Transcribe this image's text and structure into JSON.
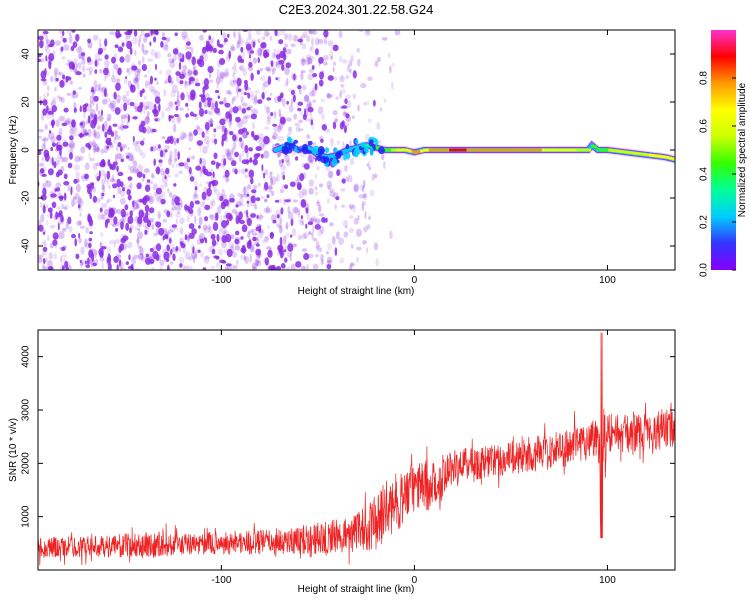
{
  "colors": {
    "background": "#ffffff",
    "axis": "#000000",
    "snr_line": "#ee2222",
    "noise": "#8a2be2",
    "colorbar_stops": [
      "#8800ff",
      "#3333ff",
      "#00ccff",
      "#00ff99",
      "#33ff00",
      "#ccff00",
      "#ffff00",
      "#ff9900",
      "#ff0000",
      "#ff33cc"
    ]
  },
  "chart_data": [
    {
      "type": "heatmap",
      "title": "C2E3.2024.301.22.58.G24",
      "xlabel": "Height of straight line (km)",
      "ylabel": "Frequency (Hz)",
      "xlim": [
        -195,
        135
      ],
      "ylim": [
        -50,
        50
      ],
      "xticks": [
        -100,
        0,
        100
      ],
      "xtick_labels": [
        "-100",
        "0",
        "100"
      ],
      "yticks": [
        -40,
        -20,
        0,
        20,
        40
      ],
      "ytick_labels": [
        "-40",
        "-20",
        "0",
        "20",
        "40"
      ],
      "colorbar": {
        "label": "Normalized spectral amplitude",
        "range": [
          0,
          1
        ],
        "ticks": [
          0.0,
          0.2,
          0.4,
          0.6,
          0.8
        ],
        "tick_labels": [
          "0.0",
          "0.2",
          "0.4",
          "0.6",
          "0.8"
        ]
      },
      "noise_region": {
        "x": [
          -195,
          -15
        ],
        "density": "high below -75 km, fading toward -15 km"
      },
      "signal_ridge": {
        "x": [
          -72,
          -65,
          -60,
          -55,
          -50,
          -45,
          -40,
          -35,
          -30,
          -25,
          -20,
          -15,
          -10,
          -5,
          0,
          5,
          10,
          20,
          40,
          60,
          80,
          90,
          92,
          95,
          100,
          110,
          120,
          130,
          135
        ],
        "frequency": [
          0,
          2,
          0,
          1,
          -2,
          -3,
          -2,
          0,
          1,
          2,
          1,
          0,
          0,
          0,
          -1,
          0,
          0,
          0,
          0,
          0,
          0,
          0,
          2,
          0,
          0,
          -1,
          -2,
          -3,
          -4
        ],
        "amplitude": [
          0.25,
          0.2,
          0.15,
          0.2,
          0.15,
          0.2,
          0.25,
          0.2,
          0.3,
          0.35,
          0.4,
          0.45,
          0.6,
          0.7,
          0.75,
          0.7,
          0.8,
          0.85,
          0.8,
          0.75,
          0.65,
          0.55,
          0.4,
          0.45,
          0.5,
          0.55,
          0.6,
          0.7,
          0.6
        ]
      }
    },
    {
      "type": "line",
      "title": "",
      "xlabel": "Height of straight line (km)",
      "ylabel": "SNR (10 * v/v)",
      "xlim": [
        -195,
        135
      ],
      "ylim": [
        0,
        4500
      ],
      "xticks": [
        -100,
        0,
        100
      ],
      "xtick_labels": [
        "-100",
        "0",
        "100"
      ],
      "yticks": [
        1000,
        2000,
        3000,
        4000
      ],
      "ytick_labels": [
        "1000",
        "2000",
        "3000",
        "4000"
      ],
      "series": [
        {
          "x": [
            -195,
            -180,
            -160,
            -140,
            -120,
            -100,
            -80,
            -60,
            -40,
            -30,
            -20,
            -15,
            -10,
            -5,
            0,
            5,
            10,
            15,
            20,
            40,
            60,
            80,
            90,
            95,
            97,
            100,
            110,
            120,
            130,
            135
          ],
          "center": [
            420,
            430,
            440,
            470,
            480,
            500,
            520,
            560,
            630,
            700,
            900,
            1100,
            1250,
            1400,
            1550,
            1600,
            1500,
            1850,
            1950,
            2050,
            2150,
            2300,
            2450,
            2500,
            2100,
            2600,
            2550,
            2600,
            2650,
            2600
          ],
          "spread": [
            250,
            250,
            250,
            320,
            260,
            270,
            300,
            330,
            420,
            450,
            650,
            700,
            700,
            650,
            600,
            550,
            700,
            450,
            420,
            400,
            400,
            450,
            480,
            500,
            1600,
            480,
            450,
            450,
            480,
            500
          ]
        }
      ]
    }
  ]
}
